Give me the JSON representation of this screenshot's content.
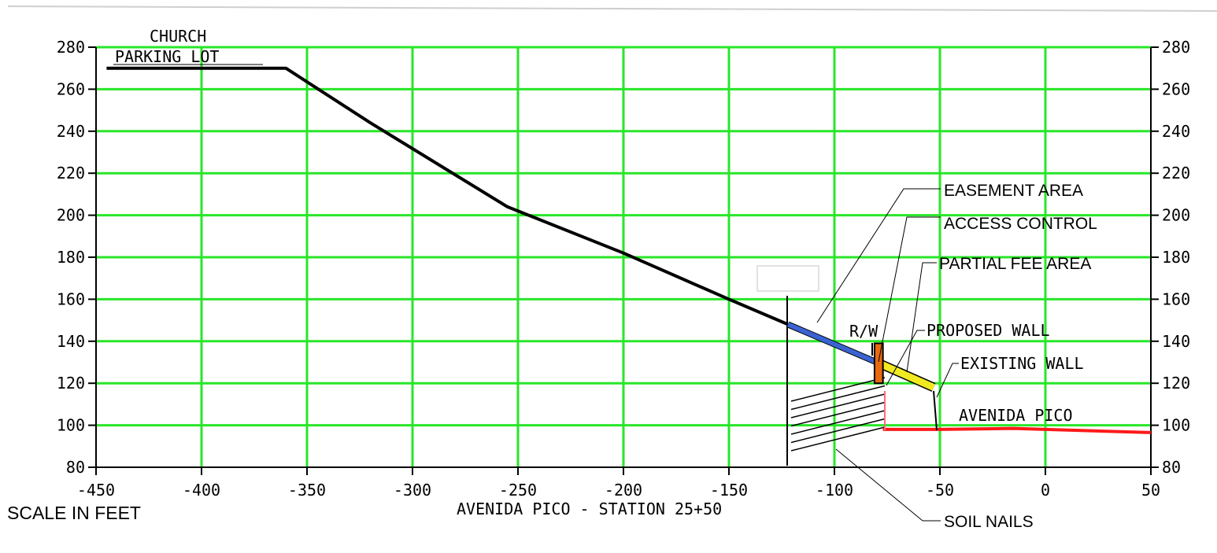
{
  "chart_data": {
    "type": "line",
    "xlabel": "AVENIDA PICO - STATION 25+50",
    "xlim": [
      -450,
      50
    ],
    "ylim": [
      80,
      280
    ],
    "x_ticks": [
      "-450",
      "-400",
      "-350",
      "-300",
      "-250",
      "-200",
      "-150",
      "-100",
      "-50",
      "0",
      "50"
    ],
    "y_ticks": [
      "80",
      "100",
      "120",
      "140",
      "160",
      "180",
      "200",
      "220",
      "240",
      "260",
      "280"
    ],
    "grid": true,
    "series": [
      {
        "key": "ground",
        "color": "#000000",
        "points": [
          [
            -445,
            270
          ],
          [
            -360,
            270
          ],
          [
            -320,
            244
          ],
          [
            -255,
            204
          ],
          [
            -200,
            182
          ],
          [
            -150,
            160
          ],
          [
            -122,
            148
          ]
        ]
      },
      {
        "name": "EASEMENT AREA",
        "key": "easement",
        "color": "#3a63d1",
        "points": [
          [
            -122,
            148
          ],
          [
            -80,
            130
          ]
        ]
      },
      {
        "name": "PARTIAL FEE AREA",
        "key": "partial_fee",
        "color": "#f2ea21",
        "points": [
          [
            -80,
            130
          ],
          [
            -53,
            118
          ]
        ]
      },
      {
        "name": "AVENIDA PICO",
        "key": "road",
        "color": "#ff1a1a",
        "points": [
          [
            -77,
            98
          ],
          [
            -50,
            98
          ],
          [
            -15,
            98.5
          ],
          [
            0,
            98
          ],
          [
            50,
            96.5
          ]
        ]
      }
    ],
    "access_control": {
      "color": "#e86a10",
      "x": [
        -81,
        -77
      ],
      "y": [
        120,
        139
      ]
    },
    "annotations": {
      "church": "CHURCH",
      "parking": "PARKING LOT",
      "rw": "R/W",
      "proposed_wall": "PROPOSED WALL",
      "existing_wall": "EXISTING WALL",
      "avenida_pico": "AVENIDA PICO",
      "easement": "EASEMENT AREA",
      "access_control": "ACCESS CONTROL",
      "partial_fee": "PARTIAL FEE AREA",
      "soil_nails": "SOIL NAILS",
      "scale": "SCALE IN FEET"
    }
  }
}
